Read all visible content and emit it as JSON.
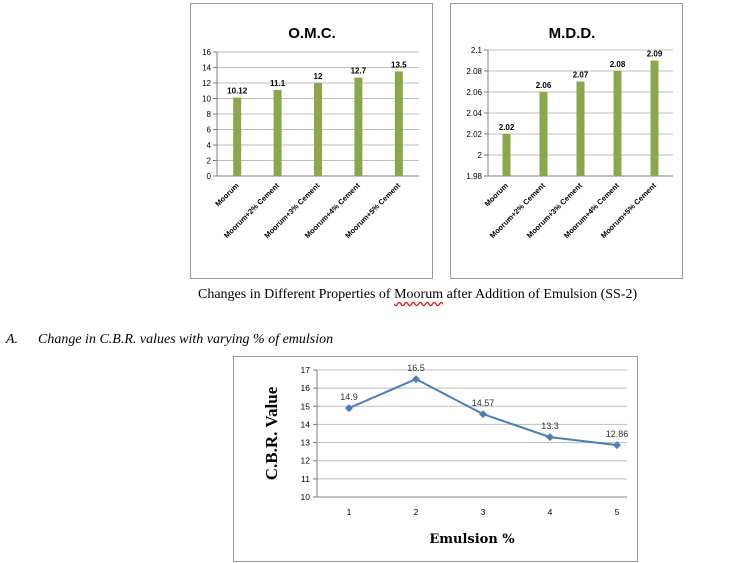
{
  "bar_charts": [
    {
      "type": "bar",
      "title": "O.M.C.",
      "categories": [
        "Moorum",
        "Moorum+2% Cement",
        "Moorum+3% Cement",
        "Moorum+4% Cement",
        "Moorum+5% Cement"
      ],
      "values": [
        10.12,
        11.1,
        12,
        12.7,
        13.5
      ],
      "data_labels": [
        "10.12",
        "11.1",
        "12",
        "12.7",
        "13.5"
      ],
      "ylim": [
        0,
        16
      ],
      "y_ticks": [
        0,
        2,
        4,
        6,
        8,
        10,
        12,
        14,
        16
      ],
      "y_tick_labels": [
        "0",
        "2",
        "4",
        "6",
        "8",
        "10",
        "12",
        "14",
        "16"
      ],
      "grid": true,
      "bar_color": "#8aa84b"
    },
    {
      "type": "bar",
      "title": "M.D.D.",
      "categories": [
        "Moorum",
        "Moorum+2% Cement",
        "Moorum+3% Cement",
        "Moorum+4% Cement",
        "Moorum+5% Cement"
      ],
      "values": [
        2.02,
        2.06,
        2.07,
        2.08,
        2.09
      ],
      "data_labels": [
        "2.02",
        "2.06",
        "2.07",
        "2.08",
        "2.09"
      ],
      "ylim": [
        1.98,
        2.1
      ],
      "y_ticks": [
        1.98,
        2,
        2.02,
        2.04,
        2.06,
        2.08,
        2.1
      ],
      "y_tick_labels": [
        "1.98",
        "2",
        "2.02",
        "2.04",
        "2.06",
        "2.08",
        "2.1"
      ],
      "grid": true,
      "bar_color": "#8aa84b"
    }
  ],
  "caption": {
    "before": "Changes in Different Properties of ",
    "word": "Moorum",
    "after": " after Addition of Emulsion (SS-2)"
  },
  "section": {
    "label": "A.",
    "text": "Change in C.B.R. values with varying % of emulsion"
  },
  "chart_data": {
    "type": "line",
    "title": "",
    "xlabel": "Emulsion %",
    "ylabel": "C.B.R.  Value",
    "x": [
      1,
      2,
      3,
      4,
      5
    ],
    "x_tick_labels": [
      "1",
      "2",
      "3",
      "4",
      "5"
    ],
    "values": [
      14.9,
      16.5,
      14.57,
      13.3,
      12.86
    ],
    "data_labels": [
      "14.9",
      "16.5",
      "14.57",
      "13.3",
      "12.86"
    ],
    "ylim": [
      10,
      17
    ],
    "y_ticks": [
      10,
      11,
      12,
      13,
      14,
      15,
      16,
      17
    ],
    "y_tick_labels": [
      "10",
      "11",
      "12",
      "13",
      "14",
      "15",
      "16",
      "17"
    ],
    "grid": true,
    "line_color": "#4a7ebb"
  }
}
